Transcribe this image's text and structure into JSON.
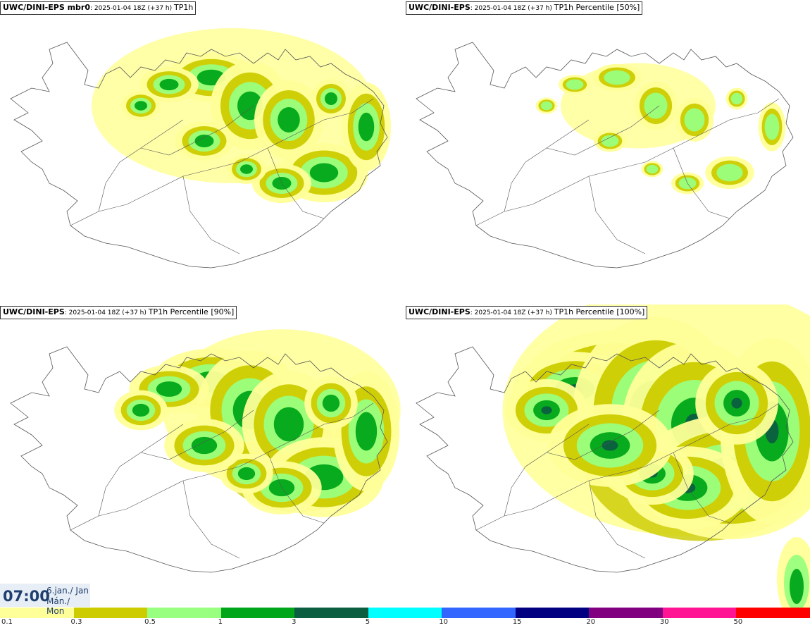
{
  "panels": [
    {
      "title_bold": "UWC/DINI-EPS mbr0",
      "title_small": ": 2025-01-04 18Z (+37 h) ",
      "title_tail": "TP1h",
      "intensity": 1.0
    },
    {
      "title_bold": "UWC/DINI-EPS",
      "title_small": ": 2025-01-04 18Z (+37 h) ",
      "title_tail": "TP1h Percentile [50%]",
      "intensity": 0.55
    },
    {
      "title_bold": "UWC/DINI-EPS",
      "title_small": ": 2025-01-04 18Z (+37 h) ",
      "title_tail": "TP1h Percentile [90%]",
      "intensity": 1.35
    },
    {
      "title_bold": "UWC/DINI-EPS",
      "title_small": ": 2025-01-04 18Z (+37 h) ",
      "title_tail": "TP1h Percentile [100%]",
      "intensity": 2.1
    }
  ],
  "time": {
    "clock": "07:00",
    "date_line1": "6.jan./ Jan",
    "date_line2": "Mán./ Mon"
  },
  "legend": {
    "colors": [
      "#ffff99",
      "#cccc00",
      "#99ff80",
      "#00a619",
      "#0b5e40",
      "#00ffff",
      "#3366ff",
      "#000080",
      "#800080",
      "#ff1493",
      "#ff0000"
    ],
    "ticks": [
      "0.1",
      "0.3",
      "0.5",
      "1",
      "3",
      "5",
      "10",
      "15",
      "20",
      "30",
      "50"
    ]
  },
  "map": {
    "land_fill": "#ffffff",
    "coast_color": "#555555"
  }
}
